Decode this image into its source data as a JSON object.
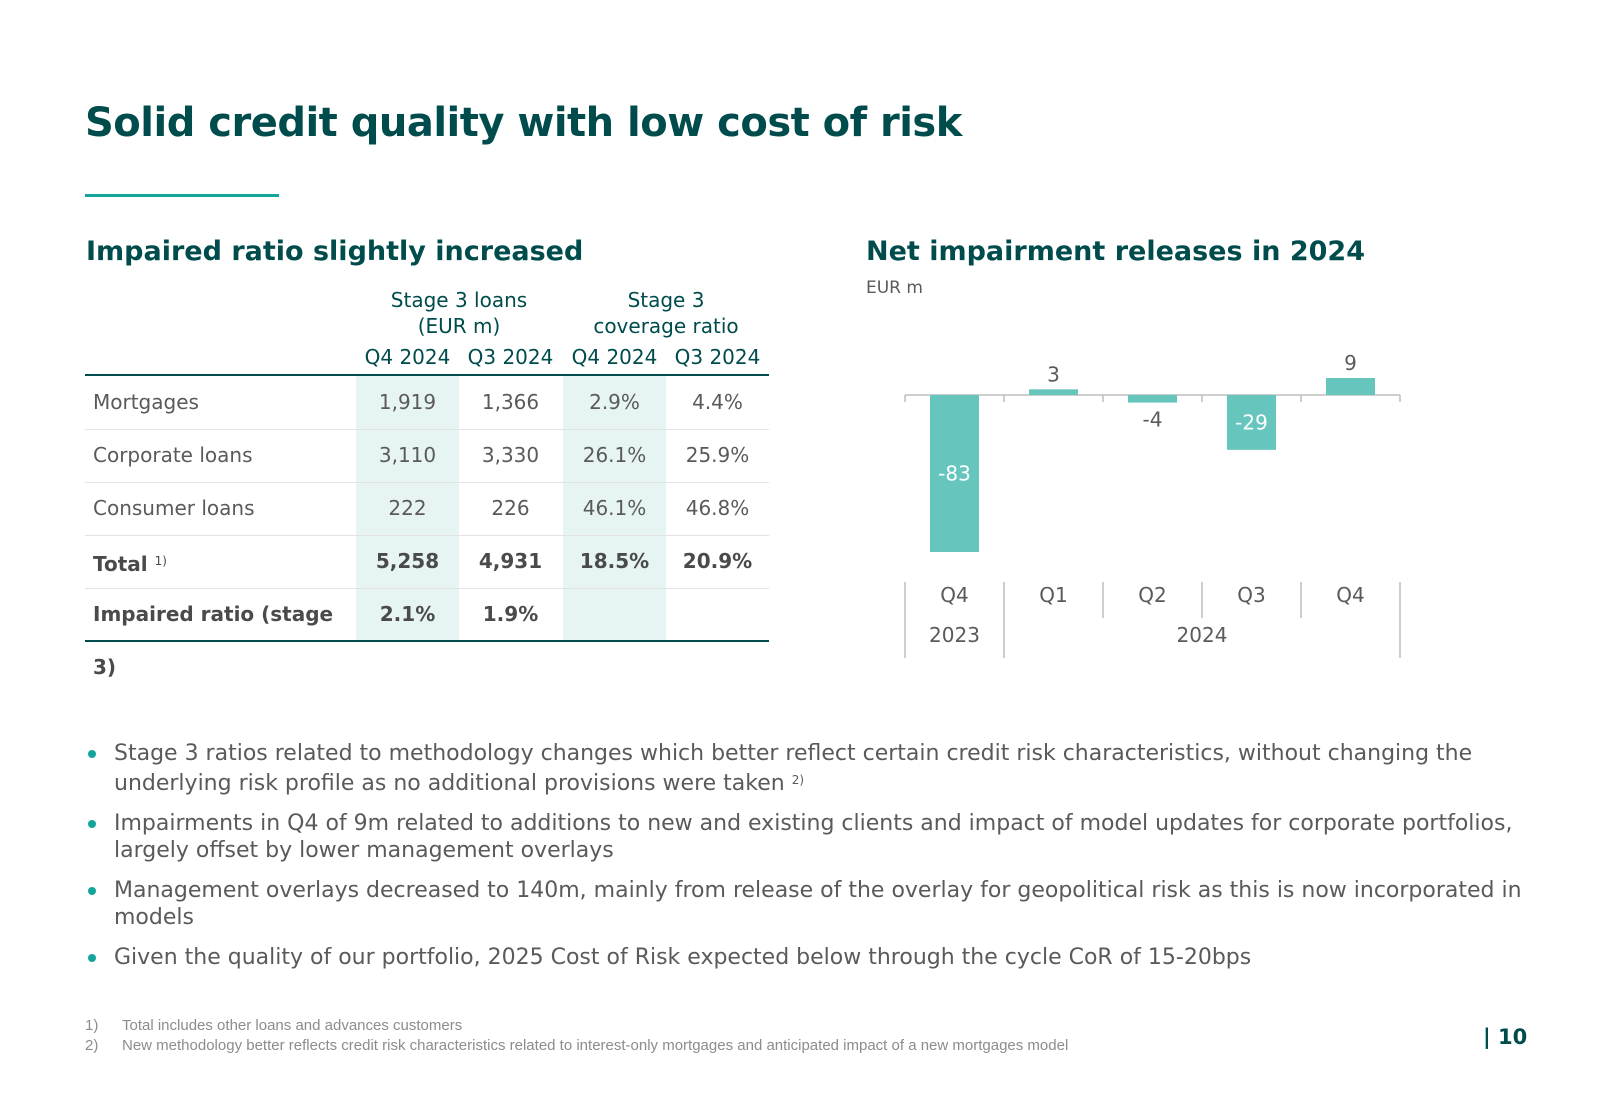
{
  "title": "Solid credit quality with low cost of risk",
  "left_section": {
    "title": "Impaired ratio slightly increased",
    "group_headers": [
      "Stage 3 loans\n(EUR m)",
      "Stage 3\ncoverage ratio"
    ],
    "group1_line1": "Stage 3 loans",
    "group1_line2": "(EUR m)",
    "group2_line1": "Stage 3",
    "group2_line2": "coverage ratio",
    "columns": [
      "Q4 2024",
      "Q3 2024",
      "Q4 2024",
      "Q3 2024"
    ],
    "rows": [
      {
        "label": "Mortgages",
        "values": [
          "1,919",
          "1,366",
          "2.9%",
          "4.4%"
        ]
      },
      {
        "label": "Corporate loans",
        "values": [
          "3,110",
          "3,330",
          "26.1%",
          "25.9%"
        ]
      },
      {
        "label": "Consumer loans",
        "values": [
          "222",
          "226",
          "46.1%",
          "46.8%"
        ]
      },
      {
        "label": "Total",
        "footnote": "1)",
        "values": [
          "5,258",
          "4,931",
          "18.5%",
          "20.9%"
        ]
      },
      {
        "label": "Impaired ratio (stage 3)",
        "values": [
          "2.1%",
          "1.9%",
          "",
          ""
        ]
      }
    ]
  },
  "right_section": {
    "title": "Net impairment releases in 2024",
    "unit": "EUR m"
  },
  "chart_data": {
    "type": "bar",
    "title": "Net impairment releases in 2024",
    "ylabel": "EUR m",
    "categories": [
      "Q4",
      "Q1",
      "Q2",
      "Q3",
      "Q4"
    ],
    "category_groups": [
      {
        "label": "2023",
        "span": 1
      },
      {
        "label": "2024",
        "span": 4
      }
    ],
    "values": [
      -83,
      3,
      -4,
      -29,
      9
    ],
    "labels": [
      "-83",
      "3",
      "-4",
      "-29",
      "9"
    ],
    "bar_color": "#66c6bd",
    "ylim": [
      -90,
      15
    ]
  },
  "bullets": [
    {
      "text": "Stage 3 ratios related to methodology changes which better reflect certain credit risk characteristics, without changing the underlying risk profile as no additional provisions were taken",
      "footnote": "2)"
    },
    {
      "text": "Impairments in Q4 of 9m related to additions to new and existing clients and impact of model updates for corporate portfolios, largely offset by lower management overlays",
      "footnote": ""
    },
    {
      "text": "Management overlays decreased to 140m, mainly from release of the overlay for geopolitical risk as this is now incorporated in models",
      "footnote": ""
    },
    {
      "text": "Given the quality of our portfolio, 2025 Cost of Risk expected below through the cycle CoR of 15-20bps",
      "footnote": ""
    }
  ],
  "footnotes": [
    {
      "num": "1)",
      "text": "Total includes other loans and advances customers"
    },
    {
      "num": "2)",
      "text": "New methodology better reflects credit risk characteristics related to interest-only mortgages and anticipated impact of a new mortgages model"
    }
  ],
  "page_number": "| 10",
  "colors": {
    "brand_dark": "#004c4c",
    "accent": "#13a59b",
    "bar": "#66c6bd",
    "shade": "#e6f5f3"
  }
}
